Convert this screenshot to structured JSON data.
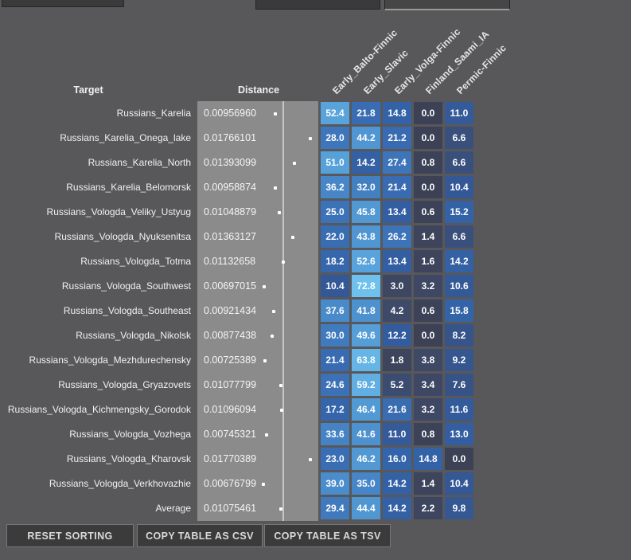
{
  "colors": {
    "background": "#58585a",
    "strip_bg": "#8b8b8b",
    "strip_line": "#c6c6c6",
    "cell_text": "#ffffff",
    "button_bg": "#3b3b3b",
    "button_border": "#777777",
    "heat_stops": [
      [
        0,
        "#3c4156"
      ],
      [
        2,
        "#3d455e"
      ],
      [
        4,
        "#3e4966"
      ],
      [
        6,
        "#3b4e76"
      ],
      [
        8,
        "#365389"
      ],
      [
        12,
        "#335c9e"
      ],
      [
        16,
        "#3464a9"
      ],
      [
        20,
        "#3769af"
      ],
      [
        24,
        "#3b70b5"
      ],
      [
        28,
        "#3f76bb"
      ],
      [
        32,
        "#4380c2"
      ],
      [
        36,
        "#4787c8"
      ],
      [
        40,
        "#4b8ecd"
      ],
      [
        44,
        "#5096d2"
      ],
      [
        48,
        "#549cd6"
      ],
      [
        52,
        "#58a2db"
      ],
      [
        56,
        "#5da9df"
      ],
      [
        60,
        "#61afe3"
      ],
      [
        64,
        "#65b5e6"
      ],
      [
        68,
        "#69bae9"
      ],
      [
        73,
        "#6ec1ed"
      ],
      [
        100,
        "#85d8f8"
      ]
    ]
  },
  "header": {
    "target": "Target",
    "distance": "Distance",
    "populations": [
      "Early_Balto-Finnic",
      "Early_Slavic",
      "Early_Volga-Finnic",
      "Finland_Saami_IA",
      "Permic-Finnic"
    ]
  },
  "table": {
    "rows": [
      {
        "target": "Russians_Karelia",
        "distance": "0.00956960",
        "values": [
          "52.4",
          "21.8",
          "14.8",
          "0.0",
          "11.0"
        ]
      },
      {
        "target": "Russians_Karelia_Onega_lake",
        "distance": "0.01766101",
        "values": [
          "28.0",
          "44.2",
          "21.2",
          "0.0",
          "6.6"
        ]
      },
      {
        "target": "Russians_Karelia_North",
        "distance": "0.01393099",
        "values": [
          "51.0",
          "14.2",
          "27.4",
          "0.8",
          "6.6"
        ]
      },
      {
        "target": "Russians_Karelia_Belomorsk",
        "distance": "0.00958874",
        "values": [
          "36.2",
          "32.0",
          "21.4",
          "0.0",
          "10.4"
        ]
      },
      {
        "target": "Russians_Vologda_Veliky_Ustyug",
        "distance": "0.01048879",
        "values": [
          "25.0",
          "45.8",
          "13.4",
          "0.6",
          "15.2"
        ]
      },
      {
        "target": "Russians_Vologda_Nyuksenitsa",
        "distance": "0.01363127",
        "values": [
          "22.0",
          "43.8",
          "26.2",
          "1.4",
          "6.6"
        ]
      },
      {
        "target": "Russians_Vologda_Totma",
        "distance": "0.01132658",
        "values": [
          "18.2",
          "52.6",
          "13.4",
          "1.6",
          "14.2"
        ]
      },
      {
        "target": "Russians_Vologda_Southwest",
        "distance": "0.00697015",
        "values": [
          "10.4",
          "72.8",
          "3.0",
          "3.2",
          "10.6"
        ]
      },
      {
        "target": "Russians_Vologda_Southeast",
        "distance": "0.00921434",
        "values": [
          "37.6",
          "41.8",
          "4.2",
          "0.6",
          "15.8"
        ]
      },
      {
        "target": "Russians_Vologda_Nikolsk",
        "distance": "0.00877438",
        "values": [
          "30.0",
          "49.6",
          "12.2",
          "0.0",
          "8.2"
        ]
      },
      {
        "target": "Russians_Vologda_Mezhdurechensky",
        "distance": "0.00725389",
        "values": [
          "21.4",
          "63.8",
          "1.8",
          "3.8",
          "9.2"
        ]
      },
      {
        "target": "Russians_Vologda_Gryazovets",
        "distance": "0.01077799",
        "values": [
          "24.6",
          "59.2",
          "5.2",
          "3.4",
          "7.6"
        ]
      },
      {
        "target": "Russians_Vologda_Kichmengsky_Gorodok",
        "distance": "0.01096094",
        "values": [
          "17.2",
          "46.4",
          "21.6",
          "3.2",
          "11.6"
        ]
      },
      {
        "target": "Russians_Vologda_Vozhega",
        "distance": "0.00745321",
        "values": [
          "33.6",
          "41.6",
          "11.0",
          "0.8",
          "13.0"
        ]
      },
      {
        "target": "Russians_Vologda_Kharovsk",
        "distance": "0.01770389",
        "values": [
          "23.0",
          "46.2",
          "16.0",
          "14.8",
          "0.0"
        ]
      },
      {
        "target": "Russians_Vologda_Verkhovazhie",
        "distance": "0.00676799",
        "values": [
          "39.0",
          "35.0",
          "14.2",
          "1.4",
          "10.4"
        ]
      },
      {
        "target": "Average",
        "distance": "0.01075461",
        "values": [
          "29.4",
          "44.4",
          "14.2",
          "2.2",
          "9.8"
        ]
      }
    ]
  },
  "footer": {
    "buttons": [
      "RESET SORTING",
      "COPY TABLE AS CSV",
      "COPY TABLE AS TSV"
    ]
  }
}
